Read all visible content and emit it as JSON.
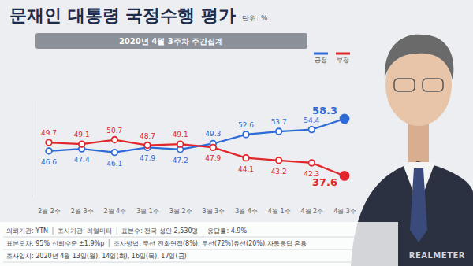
{
  "chart_data": {
    "type": "line",
    "title": "문재인 대통령 국정수행 평가",
    "unit": "단위: %",
    "subtitle": "2020년 4월 3주차 주간집계",
    "categories": [
      "2월 2주",
      "2월 3주",
      "2월 4주",
      "3월 1주",
      "3월 2주",
      "3월 3주",
      "3월 4주",
      "4월 1주",
      "4월 2주",
      "4월 3주"
    ],
    "series": [
      {
        "name": "긍정",
        "color": "#2e6bd8",
        "marker": "circle",
        "line_style": "solid",
        "values": [
          46.6,
          47.4,
          46.1,
          47.9,
          47.2,
          49.3,
          52.6,
          53.7,
          54.4,
          58.3
        ]
      },
      {
        "name": "부정",
        "color": "#e3262b",
        "marker": "circle",
        "line_style": "solid",
        "values": [
          49.7,
          49.1,
          50.7,
          48.7,
          49.1,
          47.9,
          44.1,
          43.2,
          42.3,
          37.6
        ]
      }
    ],
    "ylim": [
      30,
      65
    ],
    "grid": false,
    "legend": "upper right",
    "data_labels": true,
    "tick_labels": "x"
  },
  "footer": {
    "rows": [
      [
        "의뢰기관: YTN",
        "조사기관: 리얼미터",
        "표본수: 전국 성인 2,530명",
        "응답률: 4.9%"
      ],
      [
        "표본오차: 95% 신뢰수준 ±1.9%p",
        "조사방법: 무선 전화면접(8%), 무선(72%)유선(20%),자동응답 혼용"
      ],
      [
        "조사일시: 2020년 4월 13일(월), 14일(화), 16일(목), 17일(금)"
      ]
    ]
  },
  "logo": "REALMETER"
}
